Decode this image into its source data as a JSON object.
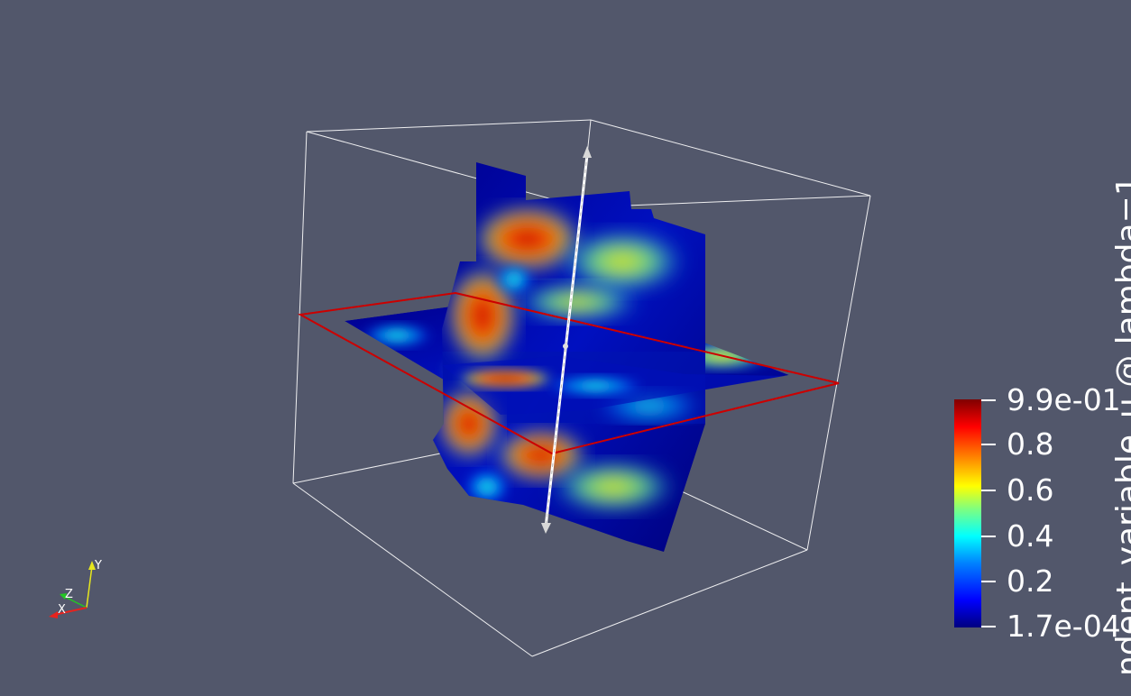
{
  "colorbar": {
    "title": "ndent_variable_u @ lambda=1",
    "labels": [
      "9.9e-01",
      "0.8",
      "0.6",
      "0.4",
      "0.2",
      "1.7e-04"
    ],
    "range_min": "1.7e-04",
    "range_max": "9.9e-01"
  },
  "orientation_axes": {
    "x": "X",
    "y": "Y",
    "z": "Z"
  },
  "colors": {
    "background": "#52576b",
    "bounding_box": "#ffffff",
    "plane_widget": "#cc0000",
    "line_widget": "#ffffff",
    "axis_x": "#e6231e",
    "axis_y": "#e6e61e",
    "axis_z": "#23c823"
  }
}
